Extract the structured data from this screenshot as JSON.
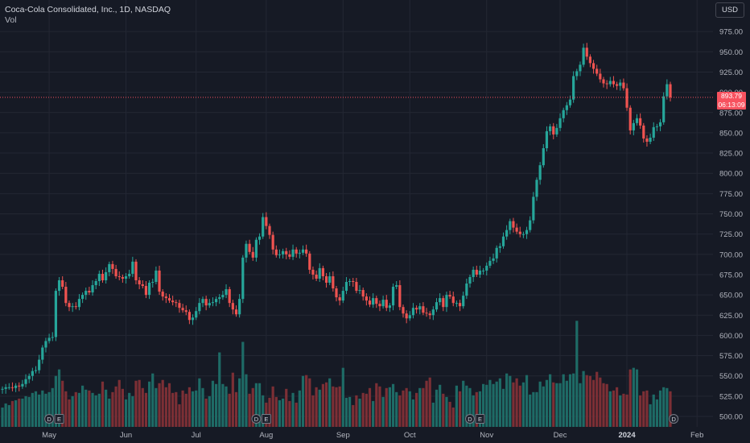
{
  "legend": {
    "symbol": "Coca-Cola Consolidated, Inc., 1D, NASDAQ",
    "volume_label": "Vol"
  },
  "currency_button": "USD",
  "last_price": {
    "value": "893.79",
    "countdown": "06:13:09"
  },
  "colors": {
    "up": "#26a69a",
    "down": "#ef5350",
    "vol_up": "#1e6b66",
    "vol_down": "#7c2f35",
    "grid": "#232733",
    "axis_text": "#b2b5be"
  },
  "event_markers": [
    {
      "label": "D",
      "icon": "dividend-icon",
      "date_index": 14
    },
    {
      "label": "E",
      "icon": "earnings-icon",
      "date_index": 17
    },
    {
      "label": "D",
      "icon": "dividend-icon",
      "date_index": 76
    },
    {
      "label": "E",
      "icon": "earnings-icon",
      "date_index": 79
    },
    {
      "label": "D",
      "icon": "dividend-icon",
      "date_index": 140
    },
    {
      "label": "E",
      "icon": "earnings-icon",
      "date_index": 143
    },
    {
      "label": "D",
      "icon": "dividend-icon",
      "date_index": 201
    }
  ],
  "chart_data": {
    "type": "candlestick",
    "title": "Coca-Cola Consolidated, Inc., 1D, NASDAQ",
    "ylim": [
      487.5,
      987.5
    ],
    "y_ticks": [
      500,
      525,
      550,
      575,
      600,
      625,
      650,
      675,
      700,
      725,
      750,
      775,
      800,
      825,
      850,
      875,
      900,
      925,
      950,
      975
    ],
    "y_tick_labels": [
      "500.00",
      "525.00",
      "550.00",
      "575.00",
      "600.00",
      "625.00",
      "650.00",
      "675.00",
      "700.00",
      "725.00",
      "750.00",
      "775.00",
      "800.00",
      "825.00",
      "850.00",
      "875.00",
      "900.00",
      "925.00",
      "950.00",
      "975.00"
    ],
    "x_tick_labels": [
      {
        "label": "May",
        "index": 14
      },
      {
        "label": "Jun",
        "index": 37
      },
      {
        "label": "Jul",
        "index": 58
      },
      {
        "label": "Aug",
        "index": 79
      },
      {
        "label": "Sep",
        "index": 102
      },
      {
        "label": "Oct",
        "index": 122
      },
      {
        "label": "Nov",
        "index": 145
      },
      {
        "label": "Dec",
        "index": 167
      },
      {
        "label": "2024",
        "index": 187
      },
      {
        "label": "Feb",
        "index": 208
      }
    ],
    "last_price": 893.79,
    "close": [
      534,
      536,
      536,
      535,
      538,
      537,
      540,
      546,
      550,
      556,
      557,
      570,
      585,
      593,
      597,
      598,
      655,
      668,
      660,
      640,
      635,
      636,
      635,
      645,
      650,
      655,
      653,
      662,
      667,
      676,
      668,
      678,
      688,
      682,
      673,
      672,
      670,
      673,
      676,
      691,
      668,
      663,
      661,
      650,
      665,
      666,
      680,
      654,
      648,
      646,
      643,
      641,
      640,
      634,
      631,
      629,
      619,
      622,
      630,
      640,
      645,
      637,
      640,
      641,
      645,
      647,
      650,
      657,
      640,
      632,
      626,
      645,
      696,
      713,
      703,
      696,
      718,
      722,
      746,
      735,
      724,
      706,
      699,
      700,
      704,
      700,
      697,
      706,
      701,
      702,
      706,
      701,
      681,
      675,
      670,
      683,
      673,
      665,
      673,
      658,
      647,
      643,
      655,
      666,
      667,
      666,
      655,
      656,
      648,
      643,
      638,
      646,
      639,
      636,
      644,
      634,
      637,
      660,
      662,
      635,
      627,
      621,
      625,
      634,
      632,
      636,
      628,
      627,
      625,
      632,
      641,
      646,
      635,
      650,
      648,
      640,
      640,
      636,
      649,
      664,
      672,
      681,
      675,
      680,
      680,
      686,
      692,
      695,
      708,
      710,
      722,
      730,
      741,
      733,
      728,
      725,
      725,
      730,
      742,
      771,
      792,
      810,
      831,
      852,
      858,
      848,
      856,
      868,
      878,
      884,
      891,
      920,
      926,
      934,
      955,
      944,
      936,
      929,
      923,
      916,
      911,
      910,
      914,
      910,
      908,
      912,
      905,
      881,
      853,
      862,
      868,
      859,
      843,
      839,
      844,
      857,
      858,
      863,
      895,
      910,
      893.79
    ],
    "volume": [
      511,
      516,
      514,
      519,
      520,
      522,
      522,
      525,
      524,
      529,
      531,
      527,
      532,
      528,
      530,
      535,
      550,
      558,
      544,
      531,
      521,
      525,
      530,
      529,
      538,
      533,
      532,
      529,
      526,
      528,
      543,
      533,
      522,
      530,
      537,
      545,
      534,
      521,
      529,
      525,
      544,
      545,
      535,
      529,
      543,
      553,
      535,
      541,
      545,
      536,
      541,
      529,
      530,
      515,
      532,
      528,
      536,
      531,
      532,
      547,
      535,
      522,
      525,
      544,
      540,
      579,
      540,
      537,
      528,
      554,
      530,
      547,
      592,
      552,
      528,
      535,
      541,
      541,
      526,
      517,
      523,
      537,
      524,
      520,
      522,
      534,
      519,
      529,
      517,
      532,
      550,
      551,
      547,
      526,
      536,
      533,
      540,
      542,
      547,
      537,
      536,
      537,
      560,
      523,
      524,
      514,
      526,
      522,
      529,
      528,
      535,
      519,
      541,
      537,
      524,
      535,
      536,
      540,
      530,
      526,
      532,
      535,
      531,
      521,
      529,
      535,
      535,
      544,
      548,
      517,
      533,
      539,
      528,
      524,
      518,
      511,
      538,
      531,
      544,
      538,
      535,
      526,
      530,
      531,
      540,
      539,
      545,
      540,
      543,
      547,
      534,
      553,
      550,
      542,
      547,
      538,
      542,
      551,
      527,
      530,
      530,
      543,
      537,
      545,
      552,
      542,
      541,
      541,
      552,
      544,
      552,
      553,
      618,
      541,
      556,
      551,
      550,
      545,
      555,
      548,
      541,
      540,
      531,
      532,
      536,
      526,
      528,
      527,
      558,
      560,
      558,
      526,
      531,
      532,
      515,
      527,
      521,
      532,
      536,
      535,
      531
    ]
  }
}
